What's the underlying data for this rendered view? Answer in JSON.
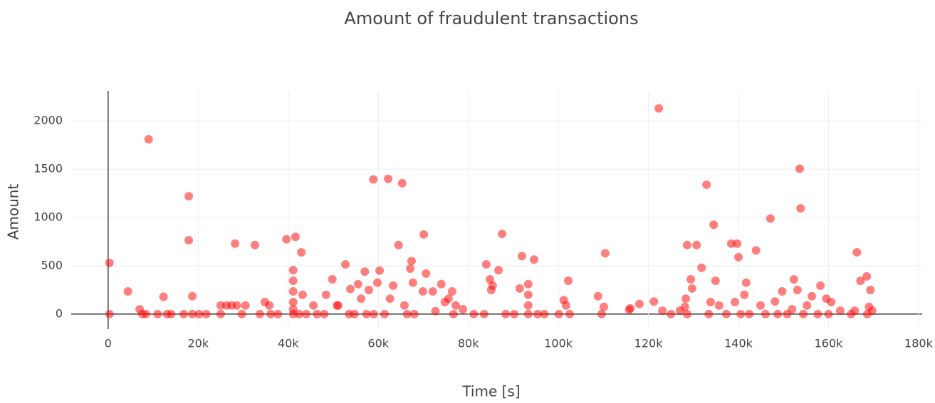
{
  "chart_data": {
    "type": "scatter",
    "title": "Amount of fraudulent transactions",
    "x_label": "Time [s]",
    "y_label": "Amount",
    "color": "#ff0000",
    "xlim": [
      -8200,
      180800
    ],
    "ylim": [
      -155,
      2310
    ],
    "xticks": [
      0,
      {
        "value": 20000,
        "label": "20k"
      },
      {
        "value": 40000,
        "label": "40k"
      },
      {
        "value": 60000,
        "label": "60k"
      },
      {
        "value": 80000,
        "label": "80k"
      },
      {
        "value": 100000,
        "label": "100k"
      },
      {
        "value": 120000,
        "label": "120k"
      },
      {
        "value": 140000,
        "label": "140k"
      },
      {
        "value": 160000,
        "label": "160k"
      },
      {
        "value": 180000,
        "label": "180k"
      }
    ],
    "yticks": [
      0,
      500,
      1000,
      1500,
      2000
    ],
    "grid": true,
    "x": [
      300,
      300,
      4400,
      7000,
      7600,
      8400,
      9000,
      11000,
      12300,
      13100,
      14000,
      16800,
      17900,
      17900,
      18700,
      18700,
      20200,
      21800,
      25000,
      25000,
      26300,
      27400,
      28200,
      28600,
      29700,
      30500,
      32600,
      33700,
      34800,
      35800,
      36100,
      37700,
      39600,
      41100,
      41100,
      41100,
      41100,
      41100,
      41100,
      41600,
      42400,
      42900,
      43200,
      44000,
      45600,
      46400,
      48000,
      48400,
      49800,
      50800,
      51100,
      52700,
      53500,
      53800,
      54700,
      55500,
      56200,
      57000,
      57400,
      57900,
      58900,
      59000,
      59800,
      60300,
      61400,
      62200,
      62600,
      63300,
      64500,
      65300,
      65800,
      66400,
      67100,
      67400,
      67700,
      68000,
      70100,
      69900,
      70600,
      72100,
      72700,
      74000,
      74800,
      75600,
      76400,
      76700,
      77200,
      78800,
      81200,
      83500,
      84000,
      84800,
      85100,
      85400,
      86700,
      87500,
      88300,
      90200,
      91400,
      91900,
      93300,
      93300,
      93300,
      93300,
      94600,
      95400,
      96900,
      100100,
      101200,
      101700,
      102200,
      102500,
      108800,
      109600,
      110100,
      110400,
      115700,
      116000,
      118000,
      121200,
      122300,
      123100,
      125000,
      127000,
      128100,
      128300,
      128600,
      128600,
      129400,
      129700,
      130700,
      131800,
      132900,
      133400,
      133800,
      134500,
      134900,
      135700,
      137300,
      138400,
      139200,
      139700,
      140000,
      140500,
      141300,
      141700,
      142400,
      143900,
      144900,
      146000,
      147100,
      148100,
      148700,
      149700,
      150800,
      151900,
      152300,
      153100,
      153600,
      153800,
      154400,
      155200,
      156300,
      157600,
      158200,
      159500,
      160000,
      160600,
      162600,
      165000,
      165800,
      166300,
      167100,
      168500,
      169000,
      169300,
      169700,
      168600
    ],
    "values": [
      530,
      0,
      235,
      50,
      0,
      0,
      1810,
      0,
      180,
      0,
      0,
      0,
      1220,
      765,
      185,
      0,
      0,
      0,
      90,
      0,
      90,
      90,
      730,
      90,
      0,
      90,
      715,
      0,
      125,
      90,
      0,
      0,
      775,
      0,
      455,
      345,
      235,
      125,
      50,
      800,
      0,
      640,
      200,
      0,
      90,
      0,
      0,
      200,
      360,
      90,
      90,
      515,
      0,
      260,
      0,
      310,
      160,
      440,
      0,
      250,
      1395,
      0,
      325,
      450,
      0,
      1400,
      160,
      295,
      715,
      1355,
      90,
      0,
      470,
      550,
      325,
      0,
      825,
      235,
      420,
      235,
      30,
      310,
      125,
      160,
      235,
      0,
      90,
      50,
      0,
      0,
      515,
      360,
      250,
      295,
      455,
      830,
      0,
      0,
      265,
      600,
      310,
      200,
      90,
      0,
      565,
      0,
      0,
      0,
      145,
      90,
      345,
      0,
      185,
      0,
      75,
      630,
      45,
      60,
      105,
      130,
      2130,
      35,
      0,
      35,
      75,
      160,
      715,
      0,
      360,
      265,
      715,
      480,
      1340,
      0,
      125,
      925,
      345,
      90,
      0,
      730,
      125,
      730,
      590,
      0,
      200,
      325,
      0,
      660,
      90,
      0,
      990,
      130,
      0,
      235,
      0,
      50,
      360,
      250,
      1505,
      1095,
      0,
      90,
      185,
      0,
      295,
      160,
      0,
      125,
      35,
      0,
      35,
      640,
      345,
      390,
      75,
      250,
      35,
      0
    ]
  }
}
